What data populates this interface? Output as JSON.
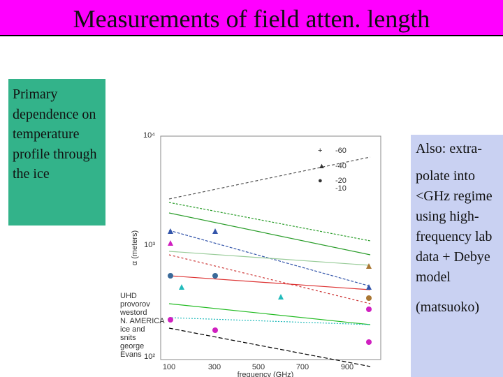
{
  "title": "Measurements of field atten. length",
  "left_box": {
    "text": "Primary dependence on temperature profile through the ice"
  },
  "right_box": {
    "lines": [
      "Also: extra-",
      "polate into <GHz regime using high-frequency lab data + Debye model",
      "(matsuoko)"
    ]
  },
  "figure": {
    "y_label": "α (meters)",
    "x_label": "frequency (GHz)",
    "y_ticks": [
      "10⁴",
      "10³",
      "10²"
    ],
    "x_ticks": [
      "100",
      "300",
      "500",
      "700",
      "900"
    ],
    "legend": [
      "-60",
      "-40",
      "-20",
      "-10"
    ],
    "sources": [
      "UHD",
      "provorov",
      "westord",
      "N. AMERICA",
      "ice and",
      "snits",
      "george",
      "Evans"
    ]
  }
}
